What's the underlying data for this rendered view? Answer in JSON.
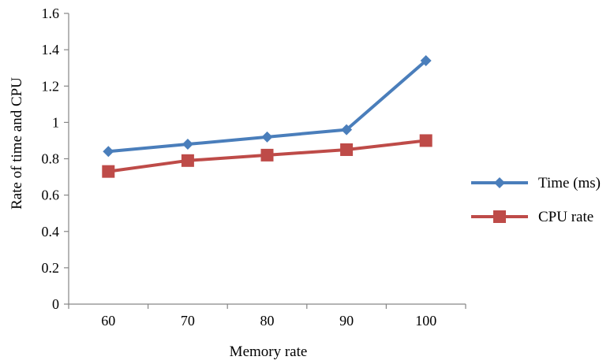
{
  "chart_data": {
    "type": "line",
    "title": "",
    "xlabel": "Memory rate",
    "ylabel": "Rate of time and CPU",
    "categories": [
      "60",
      "70",
      "80",
      "90",
      "100"
    ],
    "y_ticks": [
      "0",
      "0.2",
      "0.4",
      "0.6",
      "0.8",
      "1",
      "1.2",
      "1.4",
      "1.6"
    ],
    "ylim": [
      0,
      1.6
    ],
    "grid": false,
    "legend_position": "right",
    "series": [
      {
        "name": "Time (ms)",
        "values": [
          0.84,
          0.88,
          0.92,
          0.96,
          1.34
        ],
        "color": "#4a7ebb",
        "marker": "diamond"
      },
      {
        "name": "CPU rate",
        "values": [
          0.73,
          0.79,
          0.82,
          0.85,
          0.9
        ],
        "color": "#be4b48",
        "marker": "square"
      }
    ]
  }
}
